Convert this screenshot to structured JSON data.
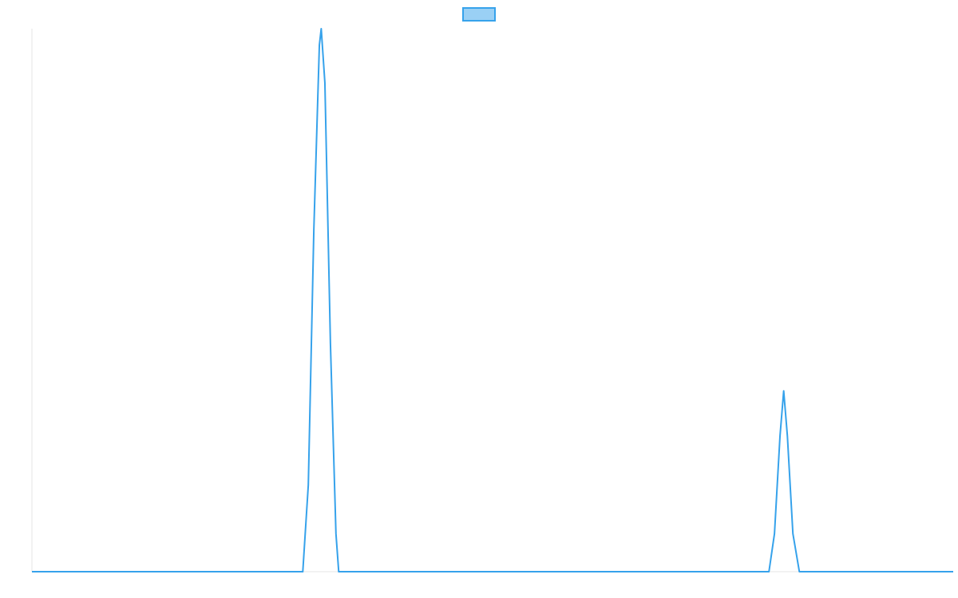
{
  "chart_data": {
    "type": "line",
    "title": "",
    "xlabel": "",
    "ylabel": "",
    "xlim": [
      0,
      1000
    ],
    "ylim": [
      0,
      1
    ],
    "grid": false,
    "legend": {
      "position": "top-center",
      "entries": [
        {
          "label": "",
          "color": "#36a2eb"
        }
      ]
    },
    "series": [
      {
        "color": "#36a2eb",
        "fill": "#9ad0f5",
        "x": [
          0,
          294,
          300,
          306,
          312,
          314,
          318,
          324,
          330,
          333,
          800,
          806,
          812,
          816,
          820,
          826,
          833,
          1000
        ],
        "y": [
          0,
          0,
          0.16,
          0.63,
          0.97,
          1.0,
          0.9,
          0.42,
          0.07,
          0,
          0,
          0.07,
          0.25,
          0.333,
          0.25,
          0.07,
          0,
          0
        ]
      }
    ]
  }
}
